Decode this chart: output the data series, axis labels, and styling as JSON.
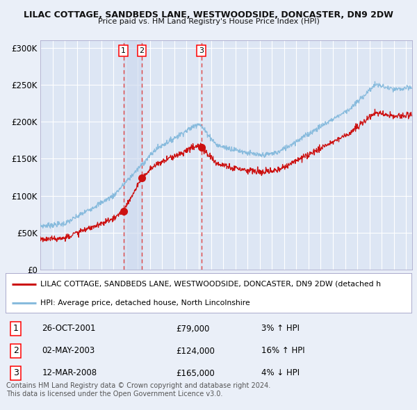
{
  "title1": "LILAC COTTAGE, SANDBEDS LANE, WESTWOODSIDE, DONCASTER, DN9 2DW",
  "title2": "Price paid vs. HM Land Registry's House Price Index (HPI)",
  "ylabel_ticks": [
    "£0",
    "£50K",
    "£100K",
    "£150K",
    "£200K",
    "£250K",
    "£300K"
  ],
  "ytick_vals": [
    0,
    50000,
    100000,
    150000,
    200000,
    250000,
    300000
  ],
  "ylim": [
    0,
    310000
  ],
  "xlim_start": 1995.0,
  "xlim_end": 2025.5,
  "transactions": [
    {
      "num": 1,
      "date": "26-OCT-2001",
      "price": 79000,
      "pct": "3%",
      "dir": "↑",
      "year": 2001.82
    },
    {
      "num": 2,
      "date": "02-MAY-2003",
      "price": 124000,
      "pct": "16%",
      "dir": "↑",
      "year": 2003.33
    },
    {
      "num": 3,
      "date": "12-MAR-2008",
      "price": 165000,
      "pct": "4%",
      "dir": "↓",
      "year": 2008.2
    }
  ],
  "legend_red": "LILAC COTTAGE, SANDBEDS LANE, WESTWOODSIDE, DONCASTER, DN9 2DW (detached h",
  "legend_blue": "HPI: Average price, detached house, North Lincolnshire",
  "footer1": "Contains HM Land Registry data © Crown copyright and database right 2024.",
  "footer2": "This data is licensed under the Open Government Licence v3.0.",
  "bg_color": "#eaeff8",
  "plot_bg": "#dde6f4",
  "grid_color": "#ffffff",
  "red_line_color": "#cc1111",
  "blue_line_color": "#88bbdd",
  "shade_color": "#ccd8ee",
  "dashed_color": "#dd4444"
}
